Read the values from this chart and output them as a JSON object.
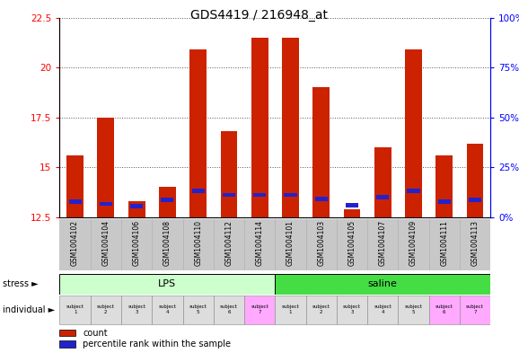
{
  "title": "GDS4419 / 216948_at",
  "samples": [
    "GSM1004102",
    "GSM1004104",
    "GSM1004106",
    "GSM1004108",
    "GSM1004110",
    "GSM1004112",
    "GSM1004114",
    "GSM1004101",
    "GSM1004103",
    "GSM1004105",
    "GSM1004107",
    "GSM1004109",
    "GSM1004111",
    "GSM1004113"
  ],
  "count_values": [
    15.6,
    17.5,
    13.3,
    14.0,
    20.9,
    16.8,
    21.5,
    21.5,
    19.0,
    12.9,
    16.0,
    20.9,
    15.6,
    16.2
  ],
  "blue_segment_bottom": [
    13.15,
    13.05,
    12.95,
    13.25,
    13.7,
    13.5,
    13.5,
    13.5,
    13.3,
    13.0,
    13.4,
    13.7,
    13.15,
    13.25
  ],
  "blue_segment_height": [
    0.22,
    0.22,
    0.22,
    0.22,
    0.22,
    0.22,
    0.22,
    0.22,
    0.22,
    0.22,
    0.22,
    0.22,
    0.22,
    0.22
  ],
  "ylim_left": [
    12.5,
    22.5
  ],
  "ylim_right": [
    0,
    100
  ],
  "yticks_left": [
    12.5,
    15.0,
    17.5,
    20.0,
    22.5
  ],
  "ytick_labels_left": [
    "12.5",
    "15",
    "17.5",
    "20",
    "22.5"
  ],
  "yticks_right": [
    0,
    25,
    50,
    75,
    100
  ],
  "ytick_labels_right": [
    "0%",
    "25%",
    "50%",
    "75%",
    "100%"
  ],
  "bar_color": "#cc2200",
  "blue_color": "#2222cc",
  "bar_width": 0.55,
  "background_plot": "#ffffff",
  "background_fig": "#ffffff",
  "stress_groups": [
    {
      "label": "LPS",
      "start": 0,
      "end": 7,
      "color": "#ccffcc"
    },
    {
      "label": "saline",
      "start": 7,
      "end": 14,
      "color": "#44dd44"
    }
  ],
  "individual_labels": [
    "subject\n1",
    "subject\n2",
    "subject\n3",
    "subject\n4",
    "subject\n5",
    "subject\n6",
    "subject\n7",
    "subject\n1",
    "subject\n2",
    "subject\n3",
    "subject\n4",
    "subject\n5",
    "subject\n6",
    "subject\n7"
  ],
  "individual_colors": [
    "#dddddd",
    "#dddddd",
    "#dddddd",
    "#dddddd",
    "#dddddd",
    "#dddddd",
    "#ffaaff",
    "#dddddd",
    "#dddddd",
    "#dddddd",
    "#dddddd",
    "#dddddd",
    "#ffaaff",
    "#ffaaff"
  ],
  "legend_count": "count",
  "legend_pct": "percentile rank within the sample",
  "title_fontsize": 10,
  "tick_fontsize": 7.5
}
